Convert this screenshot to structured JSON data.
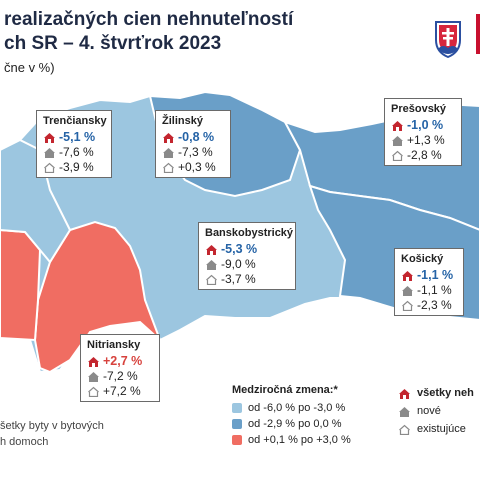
{
  "title": {
    "line1": "realizačných cien nehnuteľností",
    "line2": "ch SR – 4. štvrťrok 2023"
  },
  "subtitle": "čne v %)",
  "colors": {
    "light": "#9cc6e0",
    "medium": "#6a9fc8",
    "red": "#f06d62",
    "neg_text": "#2563a6",
    "pos_text": "#d7423d"
  },
  "regions": [
    {
      "name": "Trenčiansky",
      "all": "-5,1 %",
      "new": "-7,6 %",
      "existing": "-3,9 %",
      "all_sign": "neg"
    },
    {
      "name": "Žilinský",
      "all": "-0,8 %",
      "new": "-7,3 %",
      "existing": "+0,3 %",
      "all_sign": "neg"
    },
    {
      "name": "Prešovský",
      "all": "-1,0 %",
      "new": "+1,3 %",
      "existing": "-2,8 %",
      "all_sign": "neg"
    },
    {
      "name": "Banskobystrický",
      "all": "-5,3 %",
      "new": "-9,0 %",
      "existing": "-3,7 %",
      "all_sign": "neg"
    },
    {
      "name": "Košický",
      "all": "-1,1 %",
      "new": "-1,1 %",
      "existing": "-2,3 %",
      "all_sign": "neg"
    },
    {
      "name": "Nitriansky",
      "all": "+2,7 %",
      "new": "-7,2 %",
      "existing": "+7,2 %",
      "all_sign": "pos"
    }
  ],
  "legend": {
    "heading": "Medziročná zmena:*",
    "items": [
      {
        "label": "od -6,0 % po -3,0 %",
        "color": "#9cc6e0"
      },
      {
        "label": "od -2,9 % po 0,0 %",
        "color": "#6a9fc8"
      },
      {
        "label": "od +0,1 % po +3,0 %",
        "color": "#f06d62"
      }
    ]
  },
  "type_legend": {
    "all": "všetky neh",
    "new": "nové",
    "existing": "existujúce"
  },
  "footnote": {
    "line1": "šetky byty v bytových",
    "line2": "h domoch"
  }
}
